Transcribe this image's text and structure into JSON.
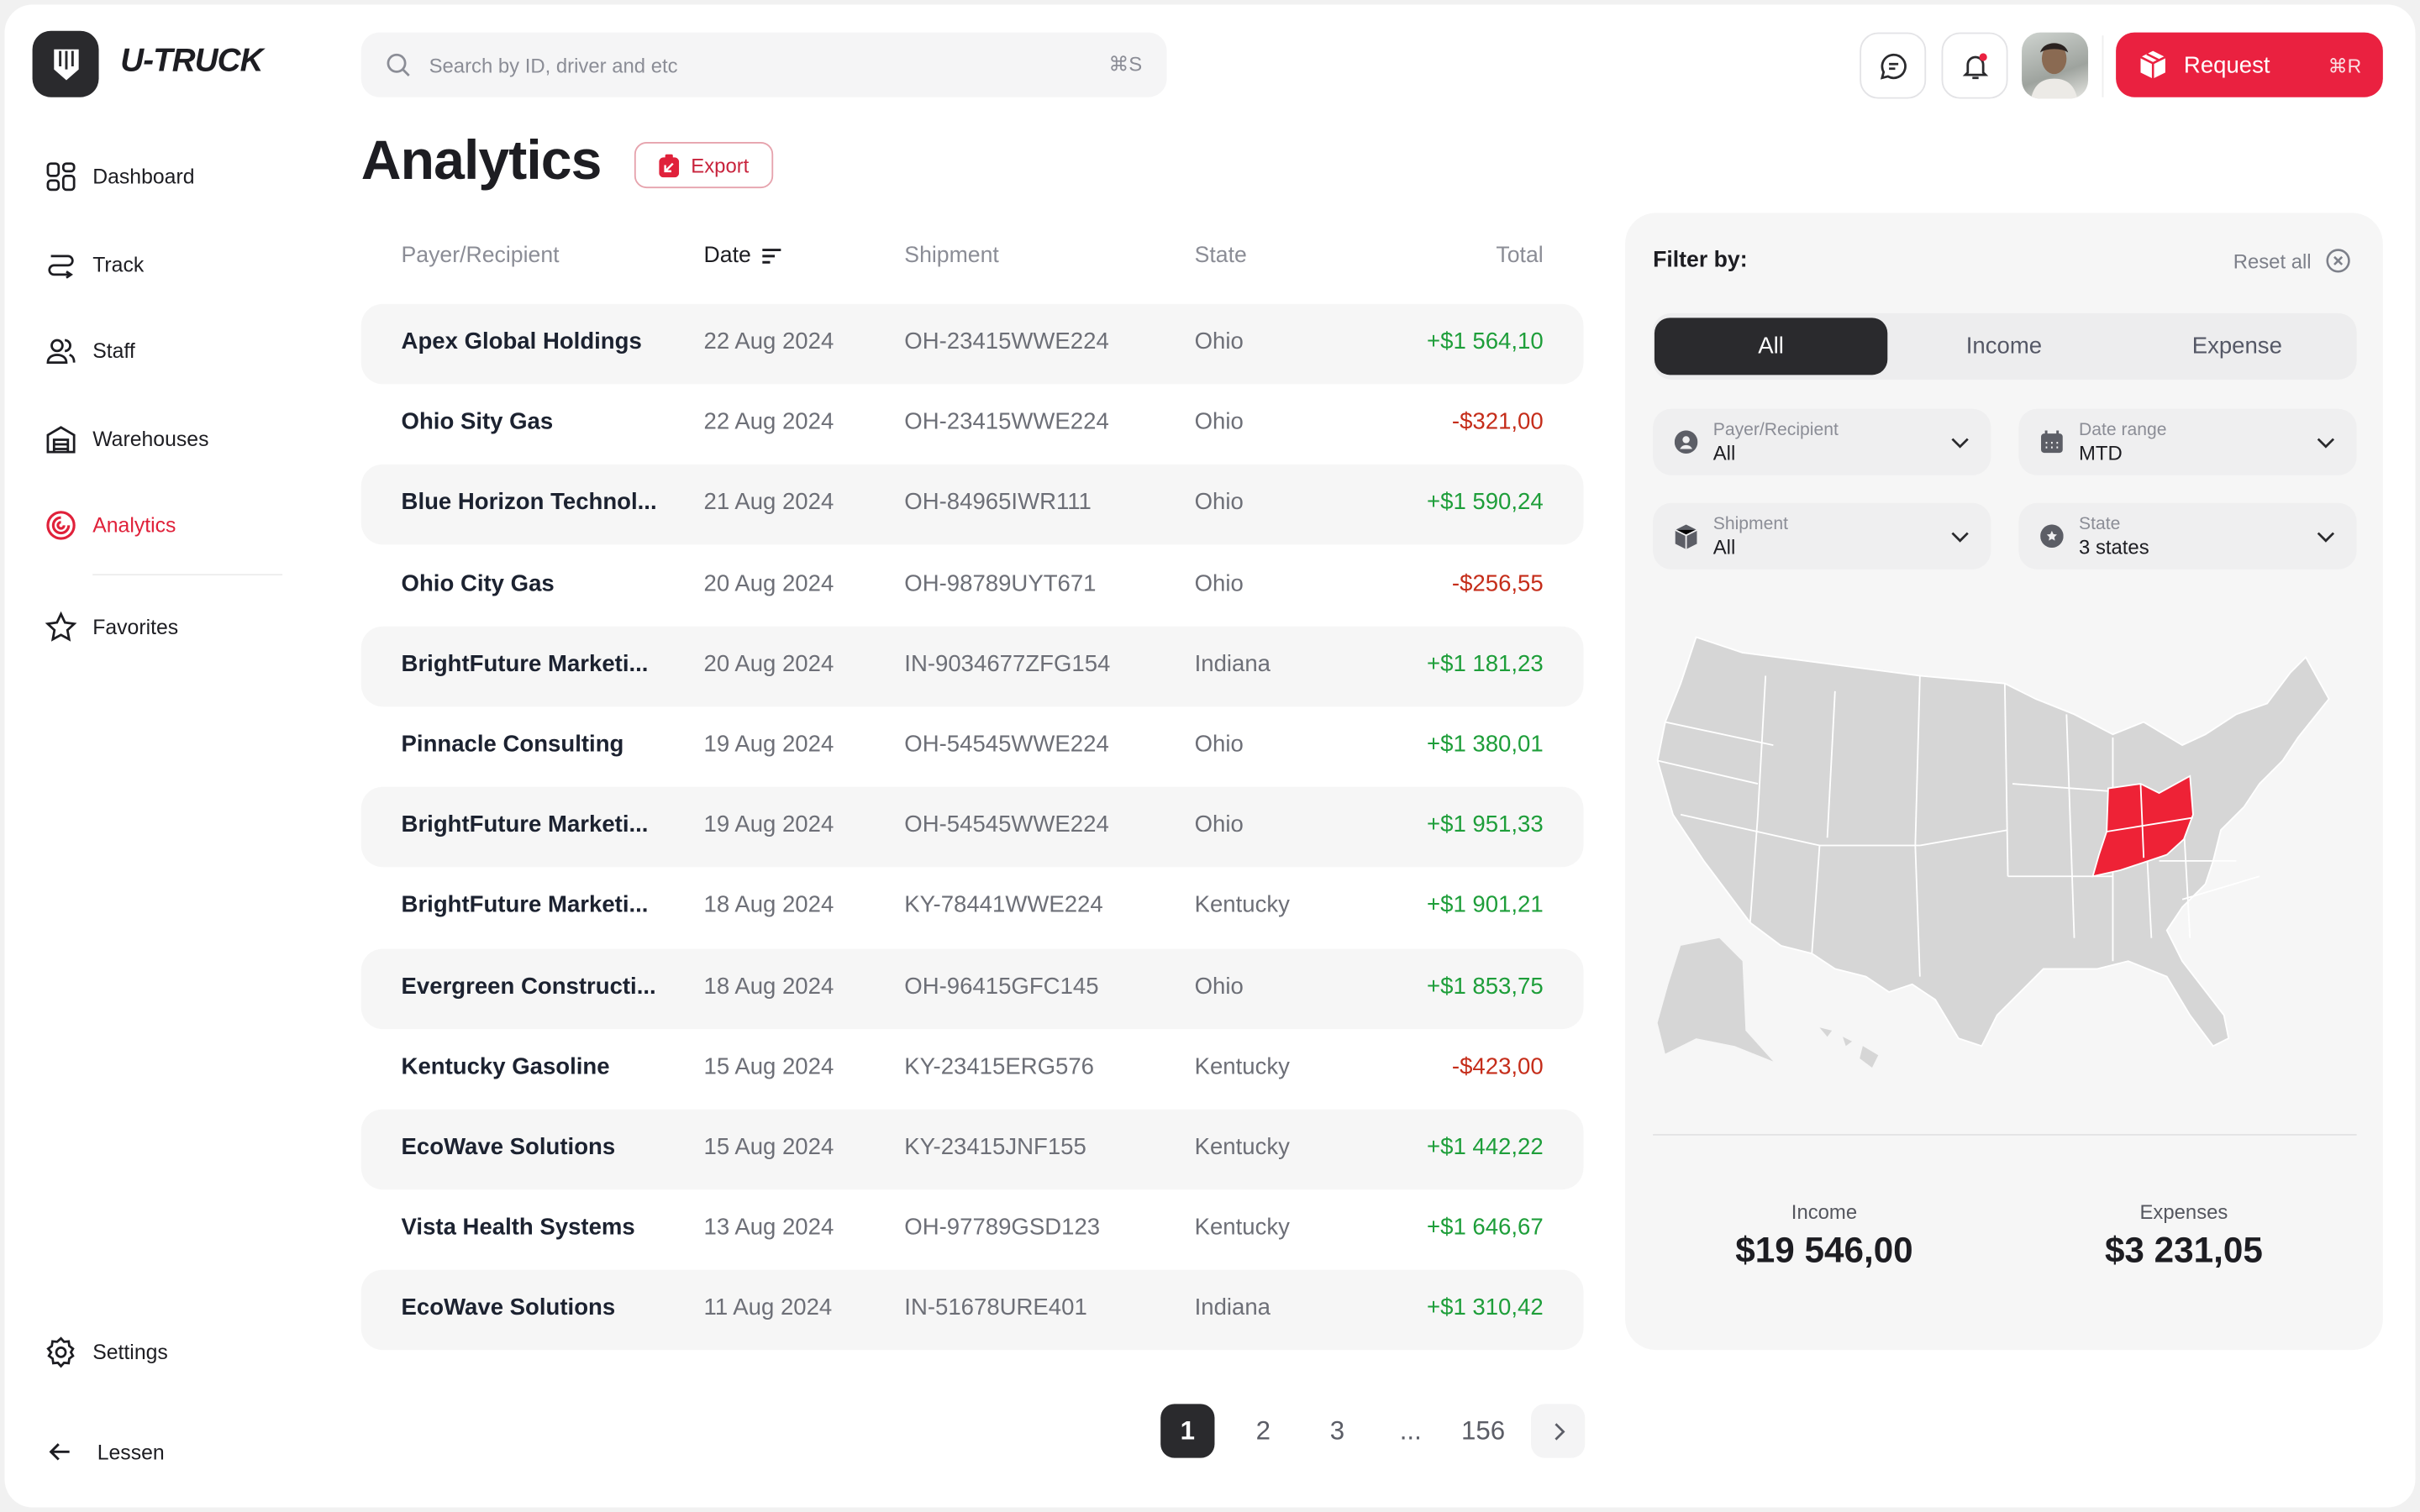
{
  "app": {
    "name": "U-TRUCK"
  },
  "search": {
    "placeholder": "Search by ID, driver and etc",
    "shortcut": "⌘S"
  },
  "header": {
    "request_label": "Request",
    "request_shortcut": "⌘R",
    "notification_dot": true
  },
  "sidebar": {
    "items": [
      {
        "label": "Dashboard",
        "icon": "grid-icon"
      },
      {
        "label": "Track",
        "icon": "route-icon"
      },
      {
        "label": "Staff",
        "icon": "users-icon"
      },
      {
        "label": "Warehouses",
        "icon": "warehouse-icon"
      },
      {
        "label": "Analytics",
        "icon": "analytics-icon",
        "active": true
      },
      {
        "label": "Favorites",
        "icon": "star-icon"
      }
    ],
    "settings": "Settings",
    "collapse": "Lessen"
  },
  "page": {
    "title": "Analytics",
    "export_label": "Export"
  },
  "table": {
    "columns": [
      "Payer/Recipient",
      "Date",
      "Shipment",
      "State",
      "Total"
    ],
    "sorted_by": "Date",
    "rows": [
      {
        "name": "Apex Global Holdings",
        "date": "22 Aug 2024",
        "shipment": "OH-23415WWE224",
        "state": "Ohio",
        "total": "+$1 564,10"
      },
      {
        "name": "Ohio Sity Gas",
        "date": "22 Aug 2024",
        "shipment": "OH-23415WWE224",
        "state": "Ohio",
        "total": "-$321,00"
      },
      {
        "name": "Blue Horizon Technol...",
        "date": "21 Aug 2024",
        "shipment": "OH-84965IWR111",
        "state": "Ohio",
        "total": "+$1 590,24"
      },
      {
        "name": "Ohio City Gas",
        "date": "20 Aug 2024",
        "shipment": "OH-98789UYT671",
        "state": "Ohio",
        "total": "-$256,55"
      },
      {
        "name": "BrightFuture Marketi...",
        "date": "20 Aug 2024",
        "shipment": "IN-9034677ZFG154",
        "state": "Indiana",
        "total": "+$1 181,23"
      },
      {
        "name": "Pinnacle Consulting",
        "date": "19 Aug 2024",
        "shipment": "OH-54545WWE224",
        "state": "Ohio",
        "total": "+$1 380,01"
      },
      {
        "name": "BrightFuture Marketi...",
        "date": "19 Aug 2024",
        "shipment": "OH-54545WWE224",
        "state": "Ohio",
        "total": "+$1 951,33"
      },
      {
        "name": "BrightFuture Marketi...",
        "date": "18 Aug 2024",
        "shipment": "KY-78441WWE224",
        "state": "Kentucky",
        "total": "+$1 901,21"
      },
      {
        "name": "Evergreen Constructi...",
        "date": "18 Aug 2024",
        "shipment": "OH-96415GFC145",
        "state": "Ohio",
        "total": "+$1 853,75"
      },
      {
        "name": "Kentucky Gasoline",
        "date": "15 Aug 2024",
        "shipment": "KY-23415ERG576",
        "state": "Kentucky",
        "total": "-$423,00"
      },
      {
        "name": "EcoWave Solutions",
        "date": "15 Aug 2024",
        "shipment": "KY-23415JNF155",
        "state": "Kentucky",
        "total": "+$1 442,22"
      },
      {
        "name": "Vista Health Systems",
        "date": "13 Aug 2024",
        "shipment": "OH-97789GSD123",
        "state": "Kentucky",
        "total": "+$1 646,67"
      },
      {
        "name": "EcoWave Solutions",
        "date": "11 Aug 2024",
        "shipment": "IN-51678URE401",
        "state": "Indiana",
        "total": "+$1 310,42"
      }
    ]
  },
  "pagination": {
    "pages": [
      "1",
      "2",
      "3",
      "...",
      "156"
    ],
    "current": "1"
  },
  "filter": {
    "title": "Filter by:",
    "reset": "Reset all",
    "tabs": [
      "All",
      "Income",
      "Expense"
    ],
    "active_tab": "All",
    "dropdowns": [
      {
        "label": "Payer/Recipient",
        "value": "All",
        "icon": "user-icon"
      },
      {
        "label": "Date range",
        "value": "MTD",
        "icon": "calendar-icon"
      },
      {
        "label": "Shipment",
        "value": "All",
        "icon": "box-icon"
      },
      {
        "label": "State",
        "value": "3 states",
        "icon": "badge-icon"
      }
    ],
    "map_highlighted_states": [
      "Indiana",
      "Ohio",
      "Kentucky"
    ],
    "highlight_color": "#ee2236"
  },
  "summary": {
    "income_label": "Income",
    "income": "$19 546,00",
    "expenses_label": "Expenses",
    "expenses": "$3 231,05"
  },
  "colors": {
    "accent": "#ea2140",
    "positive": "#1e9e3a",
    "negative": "#c52d1a",
    "dark": "#2a2a2d"
  }
}
